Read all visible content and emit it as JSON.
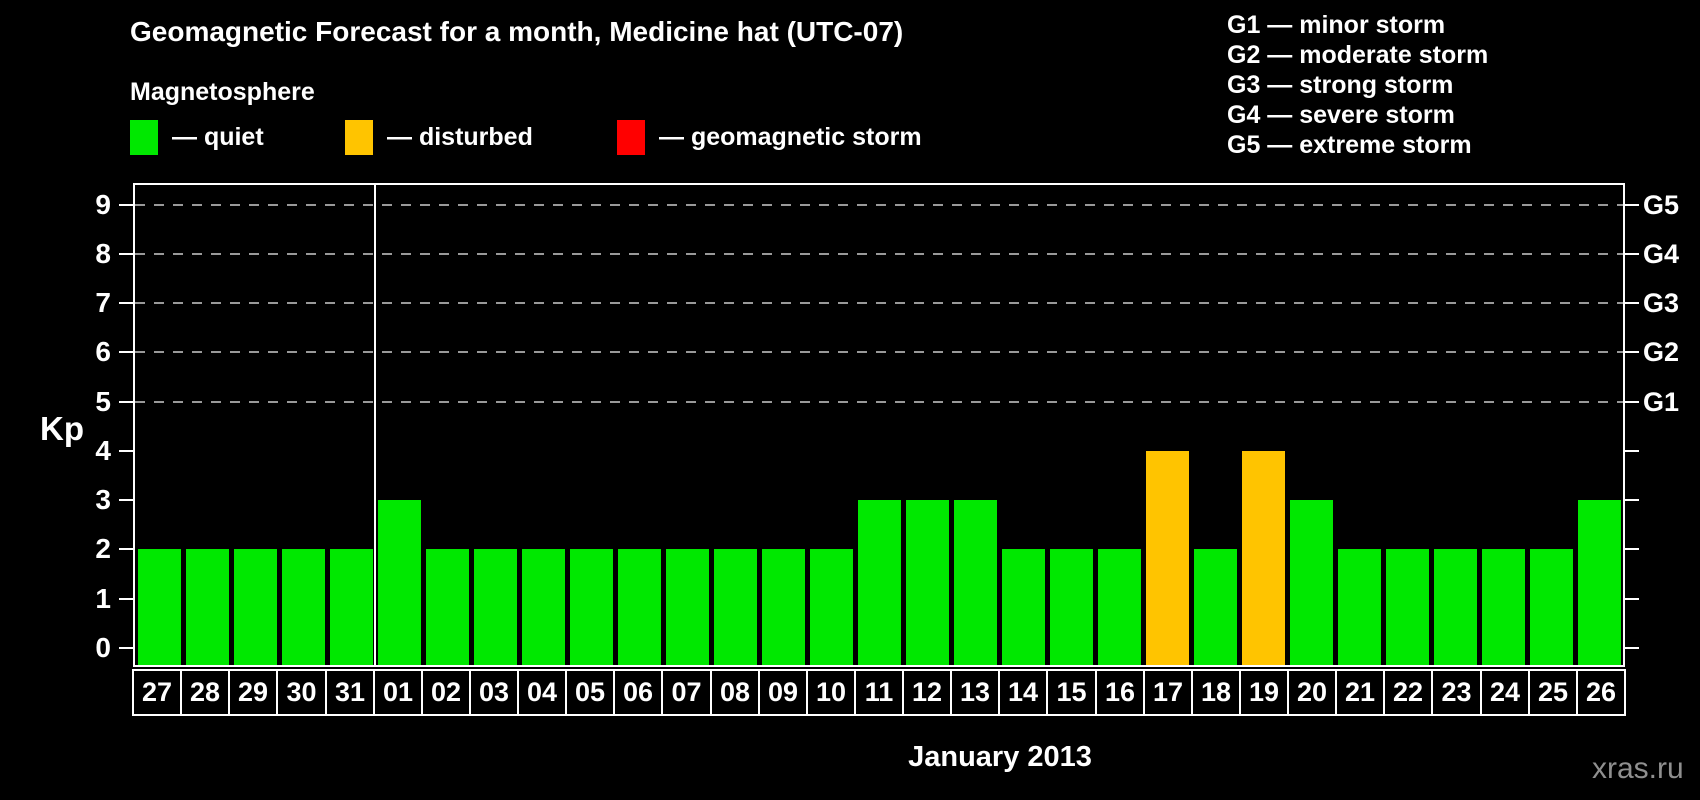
{
  "title": "Geomagnetic Forecast for a month, Medicine hat (UTC-07)",
  "legend": {
    "heading": "Magnetosphere",
    "items": [
      {
        "key": "quiet",
        "label": "— quiet",
        "color": "#00e800"
      },
      {
        "key": "disturbed",
        "label": "— disturbed",
        "color": "#ffc400"
      },
      {
        "key": "storm",
        "label": "— geomagnetic storm",
        "color": "#ff0000"
      }
    ]
  },
  "storm_scale_legend": [
    "G1 — minor storm",
    "G2 — moderate storm",
    "G3 — strong storm",
    "G4 — severe storm",
    "G5 — extreme storm"
  ],
  "watermark": "xras.ru",
  "chart_data": {
    "type": "bar",
    "title": "Geomagnetic Forecast for a month, Medicine hat (UTC-07)",
    "xlabel": "January 2013",
    "ylabel": "Kp",
    "categories": [
      "27",
      "28",
      "29",
      "30",
      "31",
      "01",
      "02",
      "03",
      "04",
      "05",
      "06",
      "07",
      "08",
      "09",
      "10",
      "11",
      "12",
      "13",
      "14",
      "15",
      "16",
      "17",
      "18",
      "19",
      "20",
      "21",
      "22",
      "23",
      "24",
      "25",
      "26"
    ],
    "values": [
      2,
      2,
      2,
      2,
      2,
      3,
      2,
      2,
      2,
      2,
      2,
      2,
      2,
      2,
      2,
      3,
      3,
      3,
      2,
      2,
      2,
      4,
      2,
      4,
      3,
      2,
      2,
      2,
      2,
      2,
      3
    ],
    "status": [
      "quiet",
      "quiet",
      "quiet",
      "quiet",
      "quiet",
      "quiet",
      "quiet",
      "quiet",
      "quiet",
      "quiet",
      "quiet",
      "quiet",
      "quiet",
      "quiet",
      "quiet",
      "quiet",
      "quiet",
      "quiet",
      "quiet",
      "quiet",
      "quiet",
      "disturbed",
      "quiet",
      "disturbed",
      "quiet",
      "quiet",
      "quiet",
      "quiet",
      "quiet",
      "quiet",
      "quiet"
    ],
    "ylim": [
      -0.35,
      9.4
    ],
    "yticks": [
      0,
      1,
      2,
      3,
      4,
      5,
      6,
      7,
      8,
      9
    ],
    "gridlines_at": [
      5,
      6,
      7,
      8,
      9
    ],
    "right_axis_labels": [
      {
        "kp": 5,
        "label": "G1"
      },
      {
        "kp": 6,
        "label": "G2"
      },
      {
        "kp": 7,
        "label": "G3"
      },
      {
        "kp": 8,
        "label": "G4"
      },
      {
        "kp": 9,
        "label": "G5"
      }
    ],
    "year_separator_after_index": 4,
    "grid": true,
    "legend_position": "top-left",
    "colors": {
      "quiet": "#00e800",
      "disturbed": "#ffc400",
      "storm": "#ff0000",
      "grid": "#999999",
      "axis": "#ffffff",
      "background": "#000000",
      "watermark": "#8f8f8f"
    }
  }
}
